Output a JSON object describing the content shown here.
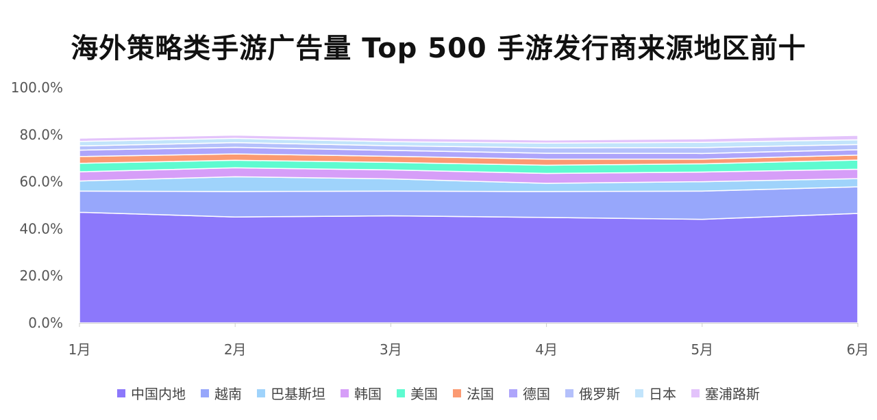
{
  "chart_data": {
    "type": "area",
    "stacked": true,
    "title": "海外策略类手游广告量 Top 500 手游发行商来源地区前十",
    "xlabel": "",
    "ylabel": "",
    "ylim": [
      0,
      100
    ],
    "y_ticks": [
      "0.0%",
      "20.0%",
      "40.0%",
      "60.0%",
      "80.0%",
      "100.0%"
    ],
    "categories": [
      "1月",
      "2月",
      "3月",
      "4月",
      "5月",
      "6月"
    ],
    "grid": false,
    "legend_position": "bottom",
    "series": [
      {
        "name": "中国内地",
        "color": "#8c78fb",
        "values": [
          47.0,
          45.0,
          45.5,
          44.8,
          44.0,
          46.5
        ]
      },
      {
        "name": "越南",
        "color": "#97a7fb",
        "values": [
          9.0,
          10.8,
          10.5,
          11.0,
          12.0,
          11.3
        ]
      },
      {
        "name": "巴基斯坦",
        "color": "#9fd3fb",
        "values": [
          4.3,
          6.3,
          5.2,
          3.5,
          4.0,
          3.5
        ]
      },
      {
        "name": "韩国",
        "color": "#d69ef8",
        "values": [
          3.9,
          3.8,
          3.8,
          4.2,
          4.1,
          4.0
        ]
      },
      {
        "name": "美国",
        "color": "#5efbd0",
        "values": [
          3.6,
          3.2,
          3.2,
          3.5,
          3.5,
          3.9
        ]
      },
      {
        "name": "法国",
        "color": "#fb9a72",
        "values": [
          2.9,
          2.7,
          2.6,
          2.6,
          2.0,
          2.1
        ]
      },
      {
        "name": "德国",
        "color": "#aea5fb",
        "values": [
          2.7,
          2.8,
          2.5,
          2.5,
          2.4,
          2.3
        ]
      },
      {
        "name": "俄罗斯",
        "color": "#b4c0fb",
        "values": [
          1.8,
          2.0,
          2.0,
          2.3,
          2.5,
          2.2
        ]
      },
      {
        "name": "日本",
        "color": "#c2e4fb",
        "values": [
          1.9,
          1.8,
          1.7,
          2.0,
          2.2,
          2.0
        ]
      },
      {
        "name": "塞浦路斯",
        "color": "#e3c3fb",
        "values": [
          1.4,
          1.4,
          1.5,
          1.3,
          1.5,
          1.9
        ]
      }
    ]
  }
}
